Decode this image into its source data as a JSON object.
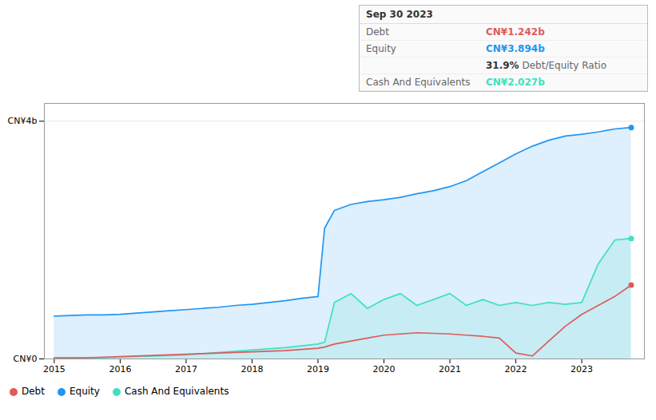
{
  "chart_data": {
    "type": "line",
    "title": "Sep 30 2023",
    "x": [
      2015.0,
      2015.25,
      2015.5,
      2015.75,
      2016.0,
      2016.25,
      2016.5,
      2016.75,
      2017.0,
      2017.25,
      2017.5,
      2017.75,
      2018.0,
      2018.25,
      2018.5,
      2018.75,
      2019.0,
      2019.1,
      2019.25,
      2019.5,
      2019.75,
      2020.0,
      2020.25,
      2020.5,
      2020.75,
      2021.0,
      2021.25,
      2021.5,
      2021.75,
      2022.0,
      2022.25,
      2022.5,
      2022.75,
      2023.0,
      2023.25,
      2023.5,
      2023.75
    ],
    "series": [
      {
        "name": "Debt",
        "color": "#e05a5a",
        "type": "line",
        "values": [
          0.02,
          0.02,
          0.02,
          0.03,
          0.04,
          0.05,
          0.06,
          0.07,
          0.08,
          0.09,
          0.1,
          0.11,
          0.12,
          0.13,
          0.14,
          0.16,
          0.18,
          0.2,
          0.25,
          0.3,
          0.35,
          0.4,
          0.42,
          0.44,
          0.43,
          0.42,
          0.4,
          0.38,
          0.35,
          0.1,
          0.05,
          0.3,
          0.55,
          0.75,
          0.9,
          1.05,
          1.242
        ]
      },
      {
        "name": "Equity",
        "color": "#2196f3",
        "type": "area",
        "values": [
          0.72,
          0.73,
          0.74,
          0.74,
          0.75,
          0.77,
          0.79,
          0.81,
          0.83,
          0.85,
          0.87,
          0.9,
          0.92,
          0.95,
          0.98,
          1.02,
          1.05,
          2.2,
          2.5,
          2.6,
          2.65,
          2.68,
          2.72,
          2.78,
          2.83,
          2.9,
          3.0,
          3.15,
          3.3,
          3.45,
          3.58,
          3.68,
          3.75,
          3.78,
          3.82,
          3.87,
          3.894
        ]
      },
      {
        "name": "Cash And Equivalents",
        "color": "#40e0c0",
        "type": "area",
        "values": [
          0.01,
          0.01,
          0.02,
          0.02,
          0.03,
          0.04,
          0.05,
          0.06,
          0.07,
          0.09,
          0.11,
          0.13,
          0.15,
          0.17,
          0.19,
          0.22,
          0.25,
          0.28,
          0.95,
          1.1,
          0.85,
          1.0,
          1.1,
          0.9,
          1.0,
          1.1,
          0.9,
          1.0,
          0.9,
          0.95,
          0.9,
          0.95,
          0.92,
          0.95,
          1.6,
          2.0,
          2.027
        ]
      }
    ],
    "xlim": [
      2014.85,
      2023.95
    ],
    "xticks": [
      2015,
      2016,
      2017,
      2018,
      2019,
      2020,
      2021,
      2022,
      2023
    ],
    "ylim": [
      0,
      4.3
    ],
    "yticks": [
      {
        "value": 0,
        "label": "CN¥0"
      },
      {
        "value": 4,
        "label": "CN¥4b"
      }
    ],
    "grid": true,
    "legend": "lower left",
    "annotations": [
      {
        "label": "Debt",
        "text": "CN¥1.242b",
        "color": "#e05a5a"
      },
      {
        "label": "Equity",
        "text": "CN¥3.894b",
        "color": "#2196f3"
      },
      {
        "label": "31.9%",
        "text": "Debt/Equity Ratio"
      },
      {
        "label": "Cash And Equivalents",
        "text": "CN¥2.027b",
        "color": "#40e0c0"
      }
    ]
  }
}
